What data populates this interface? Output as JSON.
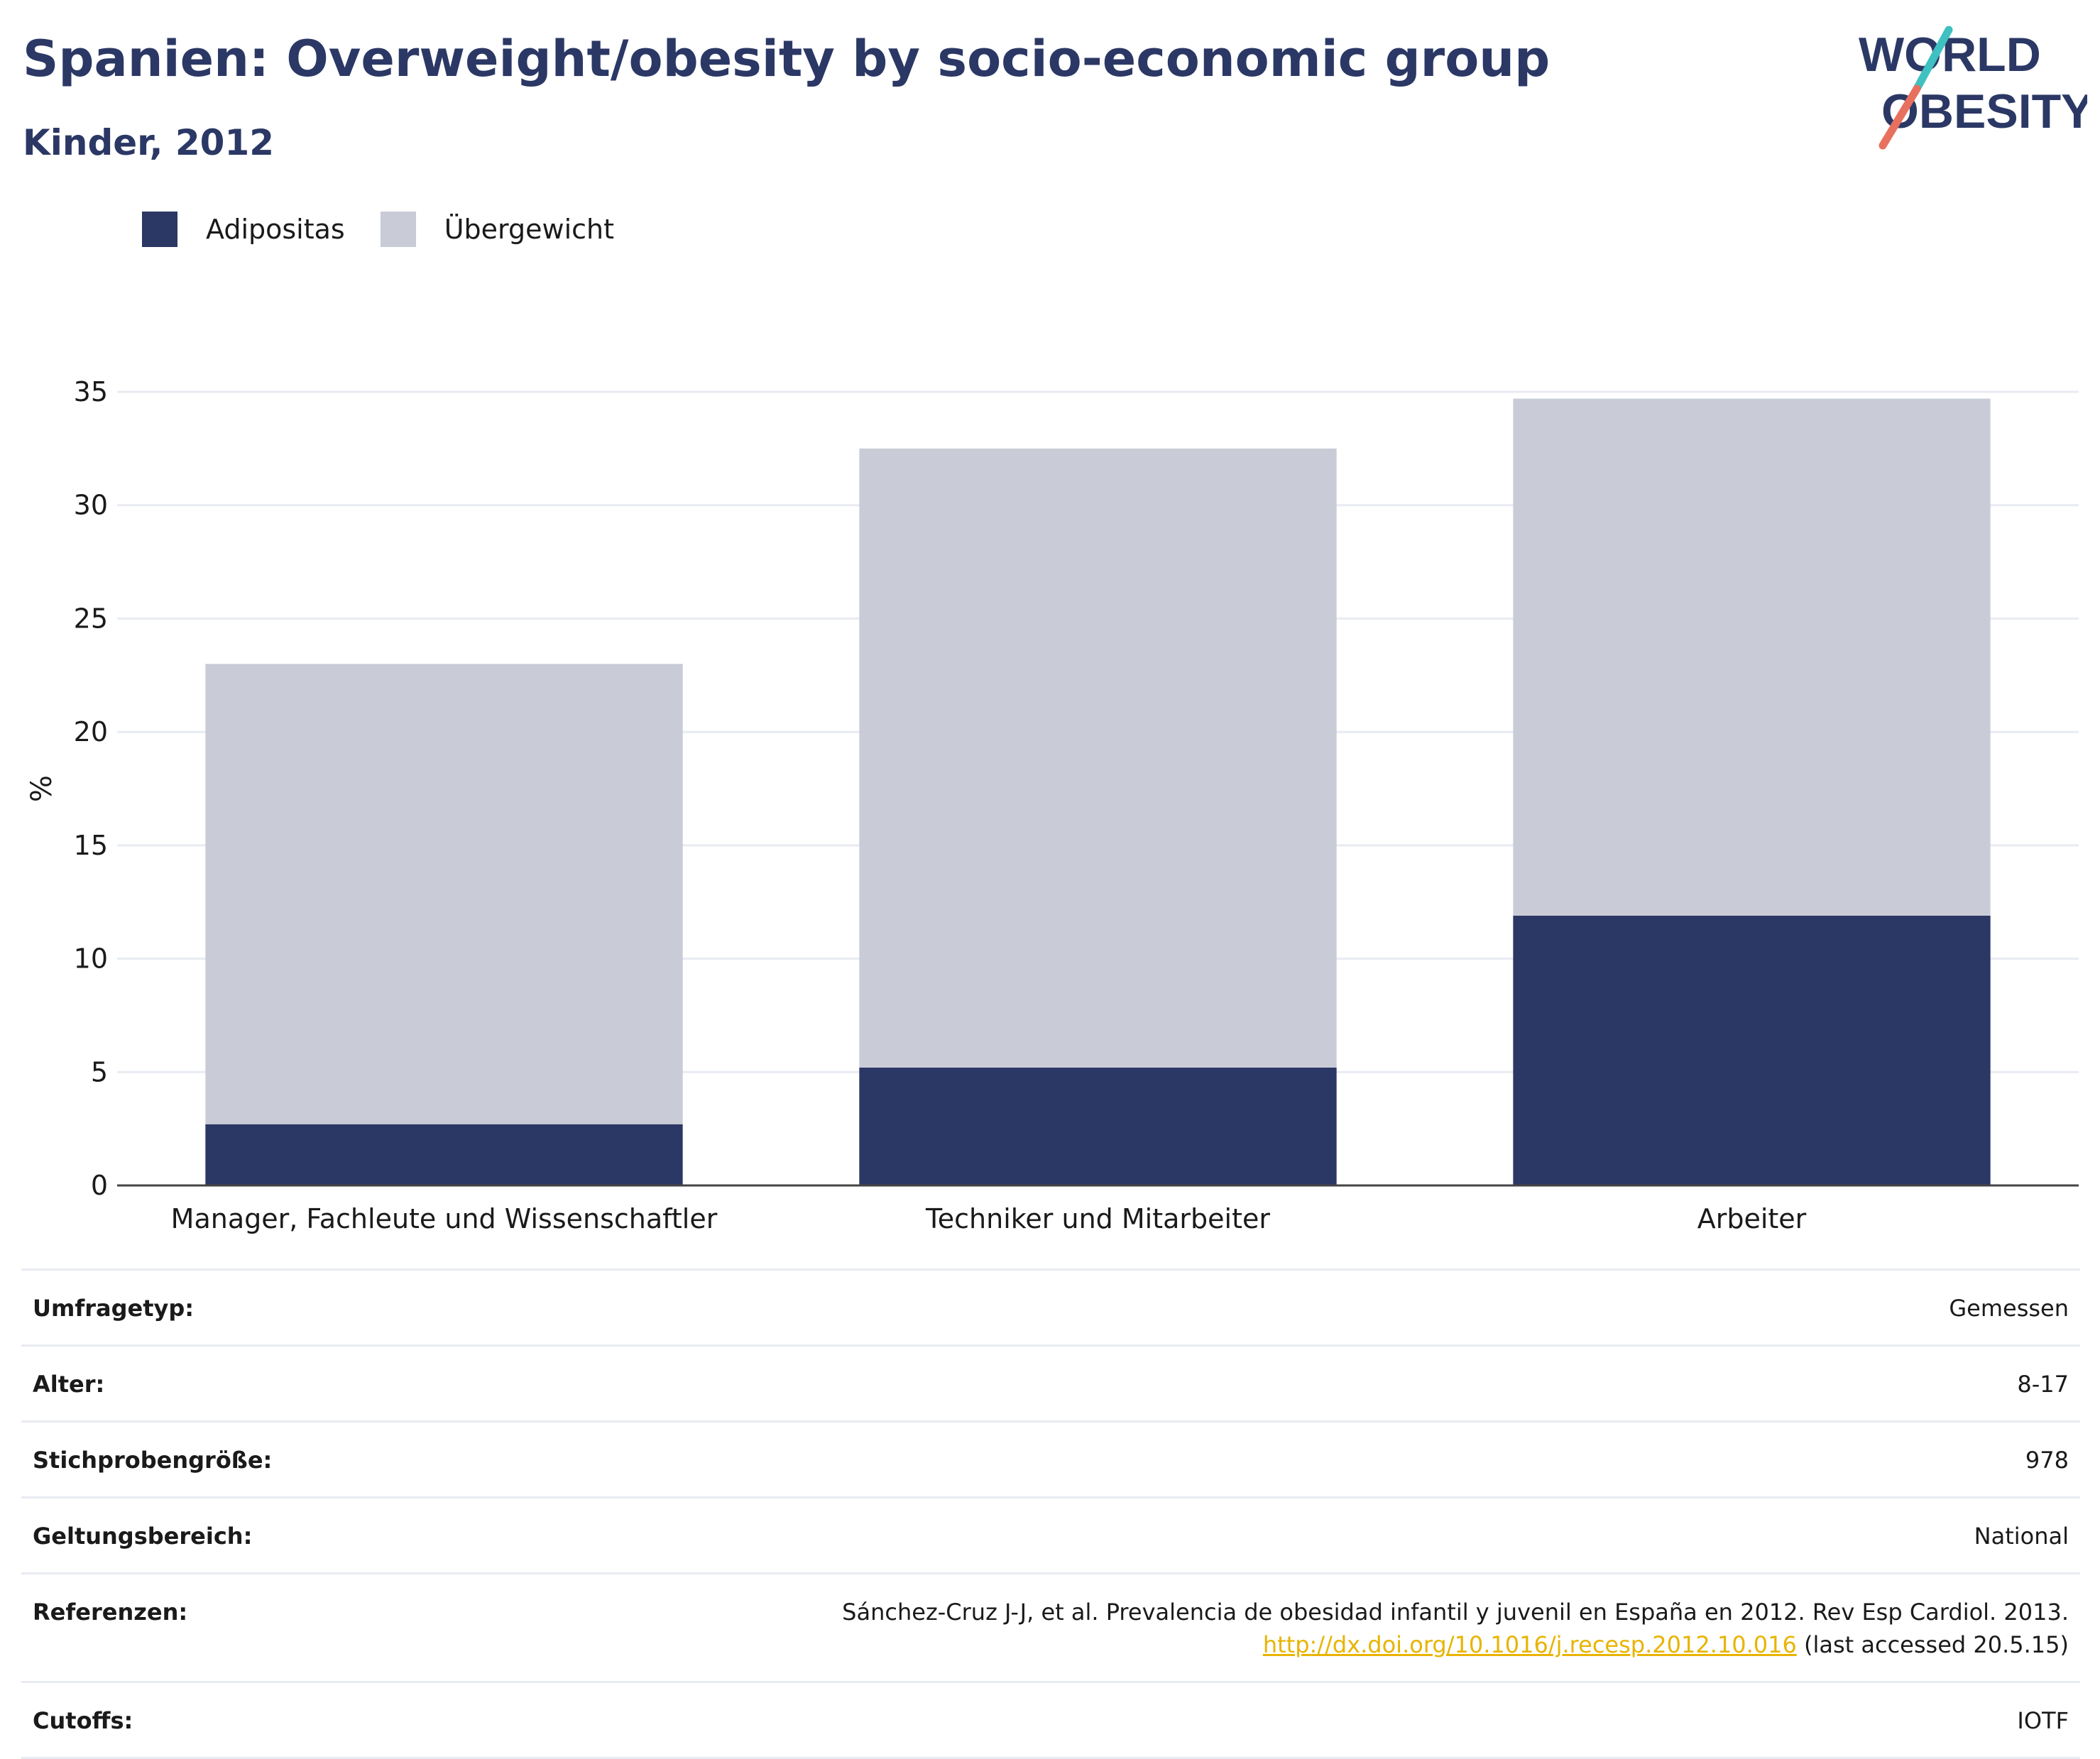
{
  "header": {
    "title": "Spanien: Overweight/obesity by socio-economic group",
    "subtitle": "Kinder, 2012"
  },
  "logo": {
    "line1": "WORLD",
    "line2": "OBESITY"
  },
  "colors": {
    "adipositas": "#2b3764",
    "uebergewicht": "#c9ccd7",
    "brand_navy": "#2b3865",
    "brand_teal": "#3ec1c0",
    "brand_coral": "#e8705e",
    "link": "#e8b400"
  },
  "chart_data": {
    "type": "bar",
    "stacked": true,
    "title": "Spanien: Overweight/obesity by socio-economic group",
    "subtitle": "Kinder, 2012",
    "categories": [
      "Manager, Fachleute und Wissenschaftler",
      "Techniker und Mitarbeiter",
      "Arbeiter"
    ],
    "series": [
      {
        "name": "Adipositas",
        "values": [
          2.7,
          5.2,
          11.9
        ]
      },
      {
        "name": "Übergewicht",
        "values": [
          20.3,
          27.3,
          22.8
        ]
      }
    ],
    "xlabel": "",
    "ylabel": "%",
    "ylim": [
      0,
      35
    ],
    "yticks": [
      0,
      5,
      10,
      15,
      20,
      25,
      30,
      35
    ],
    "grid": true,
    "legend": "top-left"
  },
  "meta": {
    "rows": [
      {
        "label": "Umfragetyp:",
        "value": "Gemessen"
      },
      {
        "label": "Alter:",
        "value": "8-17"
      },
      {
        "label": "Stichprobengröße:",
        "value": "978"
      },
      {
        "label": "Geltungsbereich:",
        "value": "National"
      }
    ],
    "references_label": "Referenzen:",
    "references_text": "Sánchez-Cruz J-J, et al. Prevalencia de obesidad infantil y juvenil en España en 2012. Rev Esp Cardiol. 2013.",
    "references_link": "http://dx.doi.org/10.1016/j.recesp.2012.10.016",
    "references_suffix": " (last accessed 20.5.15)",
    "cutoffs_label": "Cutoffs:",
    "cutoffs_value": "IOTF"
  }
}
